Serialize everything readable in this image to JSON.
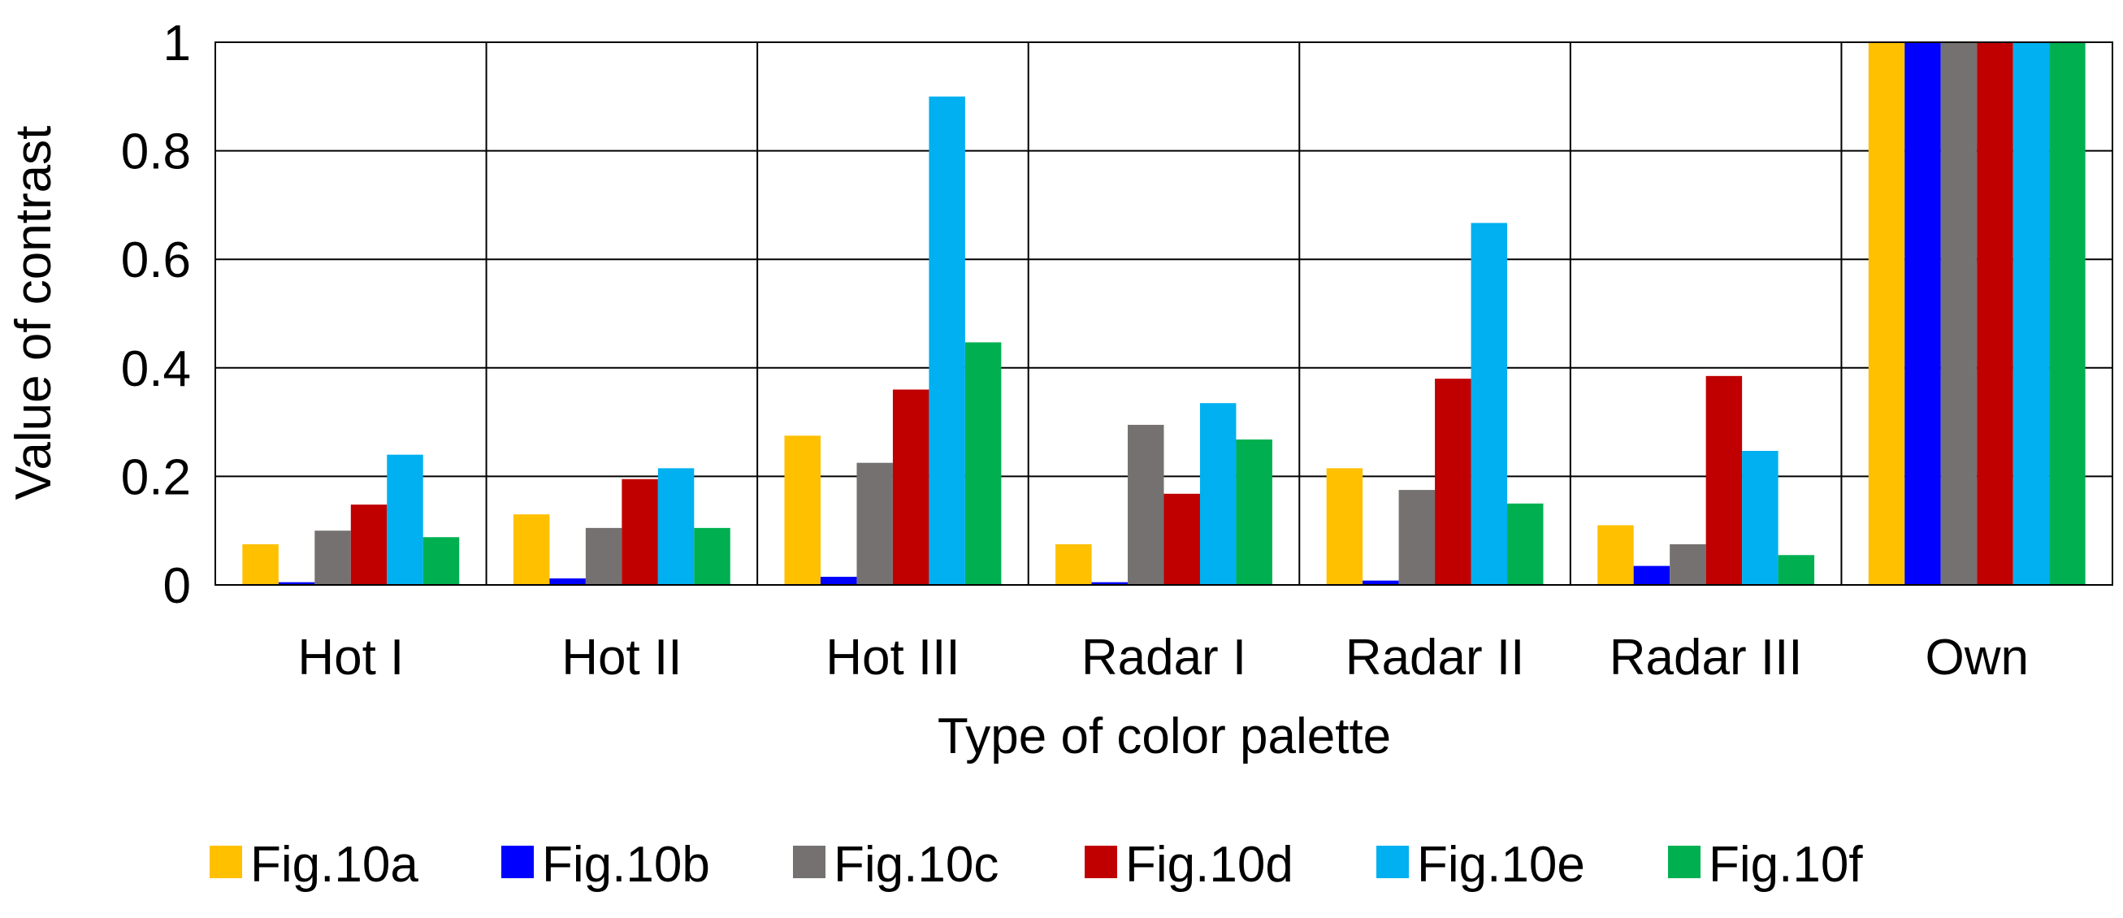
{
  "chart_data": {
    "type": "bar",
    "title": "",
    "xlabel": "Type of color palette",
    "ylabel": "Value of contrast",
    "ylim": [
      0,
      1
    ],
    "yticks": [
      0,
      0.2,
      0.4,
      0.6,
      0.8,
      1
    ],
    "ytick_labels": [
      "0",
      "0.2",
      "0.4",
      "0.6",
      "0.8",
      "1"
    ],
    "grid": true,
    "legend_position": "bottom",
    "categories": [
      "Hot I",
      "Hot II",
      "Hot III",
      "Radar I",
      "Radar II",
      "Radar III",
      "Own"
    ],
    "series": [
      {
        "name": "Fig.10a",
        "color": "#FFC000",
        "values": [
          0.075,
          0.13,
          0.275,
          0.075,
          0.215,
          0.11,
          1.0
        ]
      },
      {
        "name": "Fig.10b",
        "color": "#0000FF",
        "values": [
          0.005,
          0.012,
          0.015,
          0.005,
          0.008,
          0.035,
          1.0
        ]
      },
      {
        "name": "Fig.10c",
        "color": "#767171",
        "values": [
          0.1,
          0.105,
          0.225,
          0.295,
          0.175,
          0.075,
          1.0
        ]
      },
      {
        "name": "Fig.10d",
        "color": "#C00000",
        "values": [
          0.148,
          0.195,
          0.36,
          0.168,
          0.38,
          0.385,
          1.0
        ]
      },
      {
        "name": "Fig.10e",
        "color": "#00B0F0",
        "values": [
          0.24,
          0.215,
          0.9,
          0.335,
          0.667,
          0.247,
          1.0
        ]
      },
      {
        "name": "Fig.10f",
        "color": "#00B050",
        "values": [
          0.088,
          0.105,
          0.447,
          0.268,
          0.15,
          0.055,
          1.0
        ]
      }
    ]
  }
}
